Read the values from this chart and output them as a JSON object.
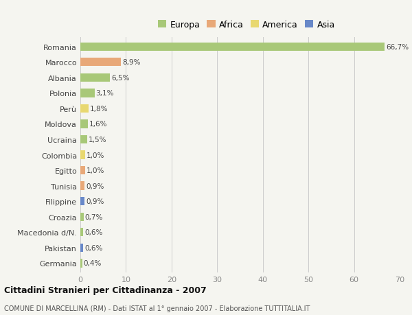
{
  "countries": [
    "Romania",
    "Marocco",
    "Albania",
    "Polonia",
    "Perù",
    "Moldova",
    "Ucraina",
    "Colombia",
    "Egitto",
    "Tunisia",
    "Filippine",
    "Croazia",
    "Macedonia d/N.",
    "Pakistan",
    "Germania"
  ],
  "values": [
    66.7,
    8.9,
    6.5,
    3.1,
    1.8,
    1.6,
    1.5,
    1.0,
    1.0,
    0.9,
    0.9,
    0.7,
    0.6,
    0.6,
    0.4
  ],
  "labels": [
    "66,7%",
    "8,9%",
    "6,5%",
    "3,1%",
    "1,8%",
    "1,6%",
    "1,5%",
    "1,0%",
    "1,0%",
    "0,9%",
    "0,9%",
    "0,7%",
    "0,6%",
    "0,6%",
    "0,4%"
  ],
  "continents": [
    "Europa",
    "Africa",
    "Europa",
    "Europa",
    "America",
    "Europa",
    "Europa",
    "America",
    "Africa",
    "Africa",
    "Asia",
    "Europa",
    "Europa",
    "Asia",
    "Europa"
  ],
  "continent_colors": {
    "Europa": "#a8c878",
    "Africa": "#e8a878",
    "America": "#e8d870",
    "Asia": "#6888c8"
  },
  "legend_items": [
    "Europa",
    "Africa",
    "America",
    "Asia"
  ],
  "legend_colors": [
    "#a8c878",
    "#e8a878",
    "#e8d870",
    "#6888c8"
  ],
  "title": "Cittadini Stranieri per Cittadinanza - 2007",
  "subtitle": "COMUNE DI MARCELLINA (RM) - Dati ISTAT al 1° gennaio 2007 - Elaborazione TUTTITALIA.IT",
  "xlim": [
    0,
    70
  ],
  "xticks": [
    0,
    10,
    20,
    30,
    40,
    50,
    60,
    70
  ],
  "background_color": "#f5f5f0",
  "grid_color": "#cccccc"
}
